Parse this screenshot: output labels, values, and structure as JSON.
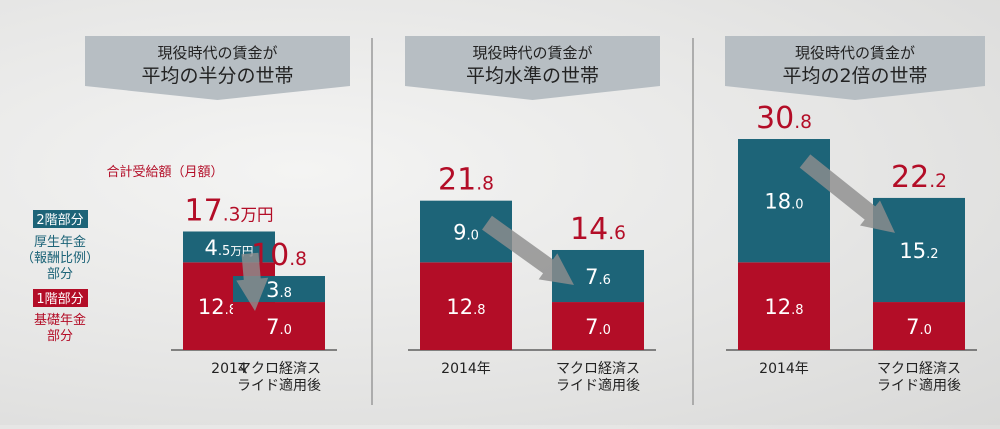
{
  "colors": {
    "teal": "#1d6478",
    "red": "#b30d27",
    "arrow": "#8d8d8d",
    "banner": "#b7bec3",
    "divider": "#9a9a9a",
    "text": "#222222"
  },
  "legend": {
    "total_label": "合計受給額（月額）",
    "tier2_tag": "2階部分",
    "tier2_desc": [
      "厚生年金",
      "（報酬比例）",
      "部分"
    ],
    "tier1_tag": "1階部分",
    "tier1_desc": [
      "基礎年金",
      "部分"
    ]
  },
  "chart_data": [
    {
      "type": "bar",
      "stacked": true,
      "title": [
        "現役時代の賃金が",
        "平均の半分の世帯"
      ],
      "categories": [
        "2014",
        "マクロ経済スライド適用後"
      ],
      "series": [
        {
          "name": "1階部分 基礎年金部分",
          "values": [
            12.8,
            7.0
          ],
          "labels": [
            "12.8万円",
            "7.0"
          ]
        },
        {
          "name": "2階部分 厚生年金（報酬比例）部分",
          "values": [
            4.5,
            3.8
          ],
          "labels": [
            "4.5万円",
            "3.8"
          ]
        }
      ],
      "totals": [
        17.3,
        10.8
      ],
      "total_labels": [
        "17.3万円",
        "10.8"
      ]
    },
    {
      "type": "bar",
      "stacked": true,
      "title": [
        "現役時代の賃金が",
        "平均水準の世帯"
      ],
      "categories": [
        "2014年",
        "マクロ経済スライド適用後"
      ],
      "series": [
        {
          "name": "1階部分 基礎年金部分",
          "values": [
            12.8,
            7.0
          ],
          "labels": [
            "12.8",
            "7.0"
          ]
        },
        {
          "name": "2階部分 厚生年金（報酬比例）部分",
          "values": [
            9.0,
            7.6
          ],
          "labels": [
            "9.0",
            "7.6"
          ]
        }
      ],
      "totals": [
        21.8,
        14.6
      ],
      "total_labels": [
        "21.8",
        "14.6"
      ]
    },
    {
      "type": "bar",
      "stacked": true,
      "title": [
        "現役時代の賃金が",
        "平均の2倍の世帯"
      ],
      "categories": [
        "2014年",
        "マクロ経済スライド適用後"
      ],
      "series": [
        {
          "name": "1階部分 基礎年金部分",
          "values": [
            12.8,
            7.0
          ],
          "labels": [
            "12.8",
            "7.0"
          ]
        },
        {
          "name": "2階部分 厚生年金（報酬比例）部分",
          "values": [
            18.0,
            15.2
          ],
          "labels": [
            "18.0",
            "15.2"
          ]
        }
      ],
      "totals": [
        30.8,
        22.2
      ],
      "total_labels": [
        "30.8",
        "22.2"
      ]
    }
  ]
}
